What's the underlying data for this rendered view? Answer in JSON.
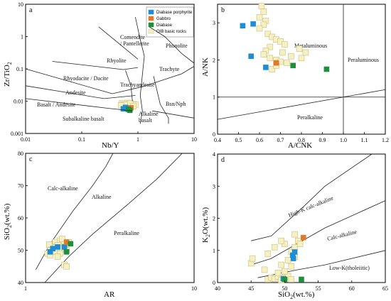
{
  "colors": {
    "Diabase porphyrite": "#1f8dd6",
    "Gabbro": "#e07a2a",
    "Diabase": "#1e8f3a",
    "OIB basic rocks": "#f6f0c2",
    "OIB basic rocks stroke": "#c8bf80"
  },
  "chart_data": [
    {
      "panel": "a",
      "type": "scatter",
      "xlabel": "Nb/Y",
      "ylabel": "Zr/TiO2",
      "xscale": "log",
      "yscale": "log",
      "xlim": [
        0.01,
        10
      ],
      "ylim": [
        0.001,
        10
      ],
      "xticks": [
        "0.01",
        "0.1",
        "1",
        "10"
      ],
      "yticks": [
        "0.001",
        "0.01",
        "0.1",
        "1",
        "10"
      ],
      "legend": {
        "placement": "top-right",
        "entries": [
          "Diabase porphyrite",
          "Gabbro",
          "Diabase",
          "OIB basic rocks"
        ]
      },
      "fields": [
        "Comendite / Pantellerite",
        "Phonolite",
        "Rhyolite",
        "Trachyte",
        "Rhyodacite / Dacite",
        "Trachyandesite",
        "Andesite",
        "Basalt / Andesite",
        "Subalkaline basalt",
        "Alkaline basalt",
        "Bsn/Nph"
      ],
      "series": [
        {
          "name": "OIB basic rocks",
          "points": [
            [
              0.52,
              0.0085
            ],
            [
              0.55,
              0.0078
            ],
            [
              0.6,
              0.0072
            ],
            [
              0.65,
              0.0088
            ],
            [
              0.7,
              0.0082
            ],
            [
              0.75,
              0.0068
            ],
            [
              0.8,
              0.0075
            ],
            [
              0.85,
              0.008
            ],
            [
              0.58,
              0.0066
            ],
            [
              0.68,
              0.0064
            ],
            [
              0.9,
              0.0078
            ],
            [
              0.62,
              0.0079
            ],
            [
              0.73,
              0.0087
            ],
            [
              0.83,
              0.007
            ],
            [
              0.5,
              0.0074
            ]
          ]
        },
        {
          "name": "Diabase porphyrite",
          "points": [
            [
              0.55,
              0.0058
            ],
            [
              0.62,
              0.006
            ],
            [
              0.6,
              0.0064
            ]
          ]
        },
        {
          "name": "Gabbro",
          "points": [
            [
              0.75,
              0.0062
            ]
          ]
        },
        {
          "name": "Diabase",
          "points": [
            [
              0.72,
              0.0052
            ],
            [
              0.68,
              0.0056
            ]
          ]
        }
      ]
    },
    {
      "panel": "b",
      "type": "scatter",
      "xlabel": "A/CNK",
      "ylabel": "A/NK",
      "xlim": [
        0.4,
        1.2
      ],
      "ylim": [
        0,
        3.5
      ],
      "xticks": [
        "0.4",
        "0.5",
        "0.6",
        "0.7",
        "0.8",
        "0.9",
        "1.0",
        "1.1",
        "1.2"
      ],
      "yticks": [
        "0",
        "1",
        "2",
        "3"
      ],
      "fields": [
        "Metaluminous",
        "Peraluminous",
        "Peralkaline"
      ],
      "series": [
        {
          "name": "OIB basic rocks",
          "points": [
            [
              0.61,
              3.45
            ],
            [
              0.62,
              3.3
            ],
            [
              0.6,
              3.15
            ],
            [
              0.63,
              3.05
            ],
            [
              0.62,
              2.95
            ],
            [
              0.6,
              2.85
            ],
            [
              0.64,
              2.7
            ],
            [
              0.66,
              2.62
            ],
            [
              0.68,
              2.55
            ],
            [
              0.7,
              2.5
            ],
            [
              0.72,
              2.42
            ],
            [
              0.65,
              2.35
            ],
            [
              0.63,
              2.25
            ],
            [
              0.62,
              2.15
            ],
            [
              0.65,
              2.05
            ],
            [
              0.68,
              2.0
            ],
            [
              0.7,
              1.95
            ],
            [
              0.73,
              1.92
            ],
            [
              0.8,
              2.05
            ],
            [
              0.82,
              2.2
            ],
            [
              0.79,
              2.3
            ],
            [
              0.66,
              1.75
            ],
            [
              0.68,
              1.85
            ],
            [
              0.75,
              2.1
            ],
            [
              0.71,
              2.2
            ]
          ]
        },
        {
          "name": "Diabase porphyrite",
          "points": [
            [
              0.52,
              2.92
            ],
            [
              0.57,
              2.97
            ],
            [
              0.56,
              2.1
            ],
            [
              0.63,
              1.8
            ]
          ]
        },
        {
          "name": "Gabbro",
          "points": [
            [
              0.68,
              1.92
            ]
          ]
        },
        {
          "name": "Diabase",
          "points": [
            [
              0.76,
              1.85
            ],
            [
              0.92,
              1.75
            ]
          ]
        }
      ]
    },
    {
      "panel": "c",
      "type": "scatter",
      "xlabel": "AR",
      "ylabel": "SiO2(wt.%)",
      "xscale": "log",
      "xlim": [
        1,
        10
      ],
      "ylim": [
        40,
        80
      ],
      "xticks": [
        "1",
        "10"
      ],
      "yticks": [
        "40",
        "50",
        "60",
        "70",
        "80"
      ],
      "fields": [
        "Calc-alkaline",
        "Alkaline",
        "Peralkaline"
      ],
      "series": [
        {
          "name": "OIB basic rocks",
          "points": [
            [
              1.5,
              52.5
            ],
            [
              1.6,
              53
            ],
            [
              1.7,
              52
            ],
            [
              1.55,
              51.5
            ],
            [
              1.65,
              50.5
            ],
            [
              1.45,
              51
            ],
            [
              1.4,
              50
            ],
            [
              1.5,
              49.5
            ],
            [
              1.6,
              49
            ],
            [
              1.7,
              51
            ],
            [
              1.75,
              50
            ],
            [
              1.35,
              49
            ],
            [
              1.4,
              48.5
            ],
            [
              1.55,
              48
            ],
            [
              1.8,
              52.5
            ],
            [
              1.65,
              53.5
            ],
            [
              1.7,
              45.5
            ],
            [
              1.75,
              45
            ],
            [
              1.5,
              50.8
            ],
            [
              1.38,
              51.8
            ]
          ]
        },
        {
          "name": "Diabase porphyrite",
          "points": [
            [
              1.45,
              50.5
            ],
            [
              1.55,
              51
            ],
            [
              1.7,
              51
            ],
            [
              1.4,
              49.5
            ]
          ]
        },
        {
          "name": "Gabbro",
          "points": [
            [
              1.75,
              52.5
            ]
          ]
        },
        {
          "name": "Diabase",
          "points": [
            [
              1.85,
              52
            ],
            [
              1.75,
              49.5
            ]
          ]
        }
      ]
    },
    {
      "panel": "d",
      "type": "scatter",
      "xlabel": "SiO2(wt.%)",
      "ylabel": "K2O(wt.%)",
      "xlim": [
        40,
        65
      ],
      "ylim": [
        0,
        4
      ],
      "xticks": [
        "40",
        "45",
        "50",
        "55",
        "60",
        "65"
      ],
      "yticks": [
        "0",
        "1",
        "2",
        "3",
        "4"
      ],
      "fields": [
        "High-K calc-alkaline",
        "Calc-alkaline",
        "Low-K(tholeiitic)"
      ],
      "series": [
        {
          "name": "OIB basic rocks",
          "points": [
            [
              47.5,
              0.1
            ],
            [
              48,
              0.15
            ],
            [
              48.5,
              0.12
            ],
            [
              49,
              0.18
            ],
            [
              49.5,
              0.08
            ],
            [
              50,
              0.15
            ],
            [
              50.5,
              0.2
            ],
            [
              51,
              0.1
            ],
            [
              49,
              0.3
            ],
            [
              50,
              0.35
            ],
            [
              51,
              0.5
            ],
            [
              51.5,
              0.8
            ],
            [
              51,
              0.95
            ],
            [
              51.5,
              1.1
            ],
            [
              52,
              1.3
            ],
            [
              51.5,
              1.5
            ],
            [
              50,
              1.2
            ],
            [
              49.5,
              1.3
            ],
            [
              48.5,
              1.1
            ],
            [
              47.5,
              0.9
            ],
            [
              45,
              0.6
            ],
            [
              45.2,
              0.75
            ],
            [
              49.5,
              0.55
            ],
            [
              50.5,
              0.7
            ],
            [
              52.3,
              1.2
            ],
            [
              47,
              0.4
            ]
          ]
        },
        {
          "name": "Diabase porphyrite",
          "points": [
            [
              49.8,
              0.12
            ],
            [
              51.2,
              0.85
            ],
            [
              51.5,
              0.95
            ],
            [
              51.3,
              0.75
            ]
          ]
        },
        {
          "name": "Gabbro",
          "points": [
            [
              52.8,
              1.4
            ]
          ]
        },
        {
          "name": "Diabase",
          "points": [
            [
              50,
              0.1
            ],
            [
              52.5,
              0.1
            ]
          ]
        }
      ]
    }
  ]
}
